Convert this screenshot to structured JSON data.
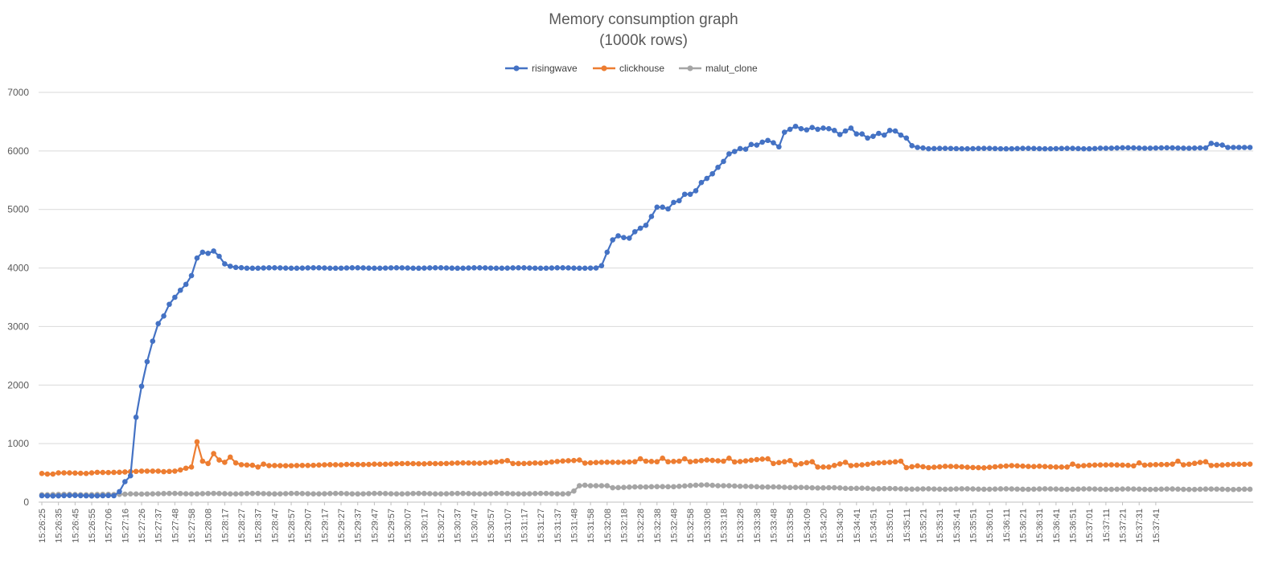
{
  "chart_data": {
    "type": "line",
    "title": "Memory consumption graph",
    "subtitle": "(1000k rows)",
    "xlabel": "",
    "ylabel": "",
    "ylim": [
      0,
      7000
    ],
    "yticks": [
      0,
      1000,
      2000,
      3000,
      4000,
      5000,
      6000,
      7000
    ],
    "grid": true,
    "legend": "top-center",
    "x_start": "15:26:25",
    "x_count": 219,
    "x_step_seconds": 3.3,
    "x_tick_labels": [
      "15:26:25",
      "15:26:35",
      "15:26:45",
      "15:26:55",
      "15:27:06",
      "15:27:16",
      "15:27:26",
      "15:27:37",
      "15:27:48",
      "15:27:58",
      "15:28:08",
      "15:28:17",
      "15:28:27",
      "15:28:37",
      "15:28:47",
      "15:28:57",
      "15:29:07",
      "15:29:17",
      "15:29:27",
      "15:29:37",
      "15:29:47",
      "15:29:57",
      "15:30:07",
      "15:30:17",
      "15:30:27",
      "15:30:37",
      "15:30:47",
      "15:30:57",
      "15:31:07",
      "15:31:17",
      "15:31:27",
      "15:31:37",
      "15:31:48",
      "15:31:58",
      "15:32:08",
      "15:32:18",
      "15:32:28",
      "15:32:38",
      "15:32:48",
      "15:32:58",
      "15:33:08",
      "15:33:18",
      "15:33:28",
      "15:33:38",
      "15:33:48",
      "15:33:58",
      "15:34:09",
      "15:34:20",
      "15:34:30",
      "15:34:41",
      "15:34:51",
      "15:35:01",
      "15:35:11",
      "15:35:21",
      "15:35:31",
      "15:35:41",
      "15:35:51",
      "15:36:01",
      "15:36:11",
      "15:36:21",
      "15:36:31",
      "15:36:41",
      "15:36:51",
      "15:37:01",
      "15:37:11",
      "15:37:21",
      "15:37:31",
      "15:37:41"
    ],
    "series": [
      {
        "name": "risingwave",
        "color": "#4472c4",
        "keyframes": [
          [
            0,
            110
          ],
          [
            13,
            110
          ],
          [
            14,
            180
          ],
          [
            15,
            350
          ],
          [
            16,
            450
          ],
          [
            17,
            1450
          ],
          [
            18,
            1980
          ],
          [
            19,
            2400
          ],
          [
            20,
            2750
          ],
          [
            21,
            3050
          ],
          [
            22,
            3180
          ],
          [
            23,
            3380
          ],
          [
            24,
            3500
          ],
          [
            25,
            3620
          ],
          [
            26,
            3720
          ],
          [
            27,
            3870
          ],
          [
            28,
            4170
          ],
          [
            29,
            4270
          ],
          [
            30,
            4250
          ],
          [
            31,
            4290
          ],
          [
            32,
            4200
          ],
          [
            33,
            4070
          ],
          [
            34,
            4030
          ],
          [
            35,
            4010
          ],
          [
            37,
            4000
          ],
          [
            100,
            4000
          ],
          [
            101,
            4040
          ],
          [
            102,
            4270
          ],
          [
            103,
            4480
          ],
          [
            104,
            4550
          ],
          [
            105,
            4520
          ],
          [
            106,
            4510
          ],
          [
            107,
            4620
          ],
          [
            108,
            4680
          ],
          [
            109,
            4730
          ],
          [
            110,
            4880
          ],
          [
            111,
            5040
          ],
          [
            112,
            5040
          ],
          [
            113,
            5010
          ],
          [
            114,
            5120
          ],
          [
            115,
            5150
          ],
          [
            116,
            5260
          ],
          [
            117,
            5260
          ],
          [
            118,
            5320
          ],
          [
            119,
            5460
          ],
          [
            120,
            5530
          ],
          [
            121,
            5610
          ],
          [
            122,
            5720
          ],
          [
            123,
            5820
          ],
          [
            124,
            5950
          ],
          [
            125,
            5990
          ],
          [
            126,
            6040
          ],
          [
            127,
            6030
          ],
          [
            128,
            6110
          ],
          [
            129,
            6100
          ],
          [
            130,
            6150
          ],
          [
            131,
            6180
          ],
          [
            132,
            6140
          ],
          [
            133,
            6070
          ],
          [
            134,
            6320
          ],
          [
            135,
            6370
          ],
          [
            136,
            6420
          ],
          [
            137,
            6380
          ],
          [
            138,
            6360
          ],
          [
            139,
            6400
          ],
          [
            140,
            6370
          ],
          [
            141,
            6390
          ],
          [
            142,
            6380
          ],
          [
            143,
            6350
          ],
          [
            144,
            6280
          ],
          [
            145,
            6340
          ],
          [
            146,
            6390
          ],
          [
            147,
            6290
          ],
          [
            148,
            6290
          ],
          [
            149,
            6220
          ],
          [
            150,
            6250
          ],
          [
            151,
            6300
          ],
          [
            152,
            6270
          ],
          [
            153,
            6350
          ],
          [
            154,
            6340
          ],
          [
            155,
            6270
          ],
          [
            156,
            6220
          ],
          [
            157,
            6090
          ],
          [
            158,
            6060
          ],
          [
            159,
            6050
          ],
          [
            160,
            6040
          ],
          [
            190,
            6040
          ],
          [
            191,
            6050
          ],
          [
            210,
            6050
          ],
          [
            211,
            6130
          ],
          [
            212,
            6110
          ],
          [
            213,
            6100
          ],
          [
            214,
            6060
          ],
          [
            216,
            6060
          ],
          [
            218,
            6060
          ]
        ]
      },
      {
        "name": "clickhouse",
        "color": "#ed7d31",
        "keyframes": [
          [
            0,
            490
          ],
          [
            1,
            480
          ],
          [
            2,
            480
          ],
          [
            3,
            500
          ],
          [
            5,
            500
          ],
          [
            8,
            490
          ],
          [
            10,
            510
          ],
          [
            14,
            510
          ],
          [
            16,
            520
          ],
          [
            18,
            530
          ],
          [
            21,
            530
          ],
          [
            22,
            520
          ],
          [
            24,
            530
          ],
          [
            25,
            550
          ],
          [
            26,
            580
          ],
          [
            27,
            600
          ],
          [
            28,
            1030
          ],
          [
            29,
            700
          ],
          [
            30,
            660
          ],
          [
            31,
            830
          ],
          [
            32,
            720
          ],
          [
            33,
            680
          ],
          [
            34,
            770
          ],
          [
            35,
            670
          ],
          [
            36,
            640
          ],
          [
            38,
            630
          ],
          [
            39,
            600
          ],
          [
            40,
            650
          ],
          [
            41,
            620
          ],
          [
            47,
            630
          ],
          [
            55,
            640
          ],
          [
            60,
            650
          ],
          [
            70,
            660
          ],
          [
            80,
            670
          ],
          [
            84,
            710
          ],
          [
            85,
            660
          ],
          [
            90,
            670
          ],
          [
            97,
            720
          ],
          [
            98,
            670
          ],
          [
            107,
            690
          ],
          [
            108,
            740
          ],
          [
            109,
            700
          ],
          [
            111,
            690
          ],
          [
            112,
            750
          ],
          [
            113,
            690
          ],
          [
            115,
            700
          ],
          [
            116,
            740
          ],
          [
            117,
            690
          ],
          [
            120,
            720
          ],
          [
            123,
            700
          ],
          [
            124,
            750
          ],
          [
            125,
            690
          ],
          [
            131,
            740
          ],
          [
            132,
            660
          ],
          [
            134,
            690
          ],
          [
            135,
            710
          ],
          [
            136,
            640
          ],
          [
            139,
            690
          ],
          [
            140,
            600
          ],
          [
            142,
            600
          ],
          [
            145,
            680
          ],
          [
            146,
            620
          ],
          [
            150,
            660
          ],
          [
            155,
            700
          ],
          [
            156,
            590
          ],
          [
            158,
            620
          ],
          [
            160,
            590
          ],
          [
            163,
            610
          ],
          [
            170,
            590
          ],
          [
            175,
            620
          ],
          [
            180,
            610
          ],
          [
            185,
            600
          ],
          [
            186,
            650
          ],
          [
            187,
            620
          ],
          [
            193,
            640
          ],
          [
            197,
            620
          ],
          [
            198,
            670
          ],
          [
            199,
            630
          ],
          [
            204,
            650
          ],
          [
            205,
            700
          ],
          [
            206,
            640
          ],
          [
            210,
            690
          ],
          [
            211,
            630
          ],
          [
            218,
            650
          ]
        ]
      },
      {
        "name": "malut_clone",
        "color": "#a5a5a5",
        "keyframes": [
          [
            0,
            130
          ],
          [
            13,
            130
          ],
          [
            16,
            140
          ],
          [
            20,
            145
          ],
          [
            95,
            145
          ],
          [
            96,
            190
          ],
          [
            97,
            280
          ],
          [
            98,
            290
          ],
          [
            99,
            280
          ],
          [
            102,
            280
          ],
          [
            103,
            250
          ],
          [
            110,
            260
          ],
          [
            115,
            270
          ],
          [
            118,
            290
          ],
          [
            120,
            295
          ],
          [
            122,
            280
          ],
          [
            127,
            270
          ],
          [
            130,
            260
          ],
          [
            135,
            250
          ],
          [
            140,
            245
          ],
          [
            145,
            240
          ],
          [
            150,
            230
          ],
          [
            160,
            225
          ],
          [
            218,
            220
          ]
        ]
      }
    ]
  }
}
